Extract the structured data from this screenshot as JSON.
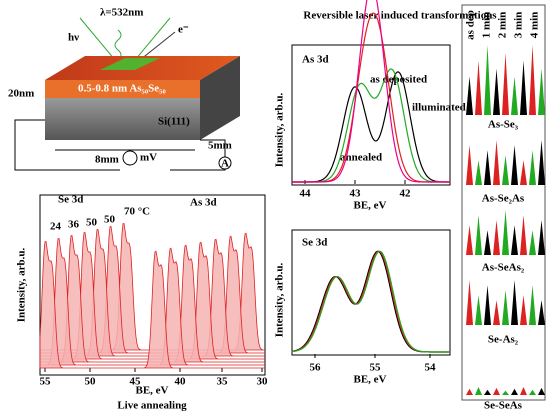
{
  "title": "Reversible laser induced transformations",
  "schematic": {
    "wavelength": "λ=532nm",
    "photon": "hν",
    "electron": "e⁻",
    "layer": "0.5-0.8 nm As₅₀Se₅₀",
    "thickness": "20nm",
    "substrate": "Si(111)",
    "depth": "5mm",
    "width": "8mm",
    "meter": "mV",
    "ammeter": "A"
  },
  "annealing": {
    "labels": [
      "Se 3d",
      "As 3d"
    ],
    "temperatures": [
      "24",
      "36",
      "50",
      "50",
      "70 °C"
    ],
    "ylabel": "Intensity, arb.u.",
    "xticks": [
      55,
      50,
      45,
      40,
      35,
      30
    ],
    "xlabel": "BE, eV",
    "caption": "Live annealing"
  },
  "as3d": {
    "label": "As 3d",
    "legend": [
      "as deposited",
      "illuminated",
      "annealed"
    ],
    "ylabel": "Intensity, arb.u.",
    "xticks": [
      44,
      43,
      42
    ],
    "xlabel": "BE, eV"
  },
  "se3d": {
    "label": "Se 3d",
    "ylabel": "Intensity, arb.u.",
    "xticks": [
      56,
      55,
      54
    ],
    "xlabel": "BE, eV"
  },
  "bonds": {
    "times": [
      "as dep",
      "1 min",
      "2 min",
      "3 min",
      "4 min"
    ],
    "labels": [
      "As-Se₃",
      "As-Se₂As",
      "As-SeAs₂",
      "Se-As₂",
      "Se-SeAs"
    ]
  }
}
